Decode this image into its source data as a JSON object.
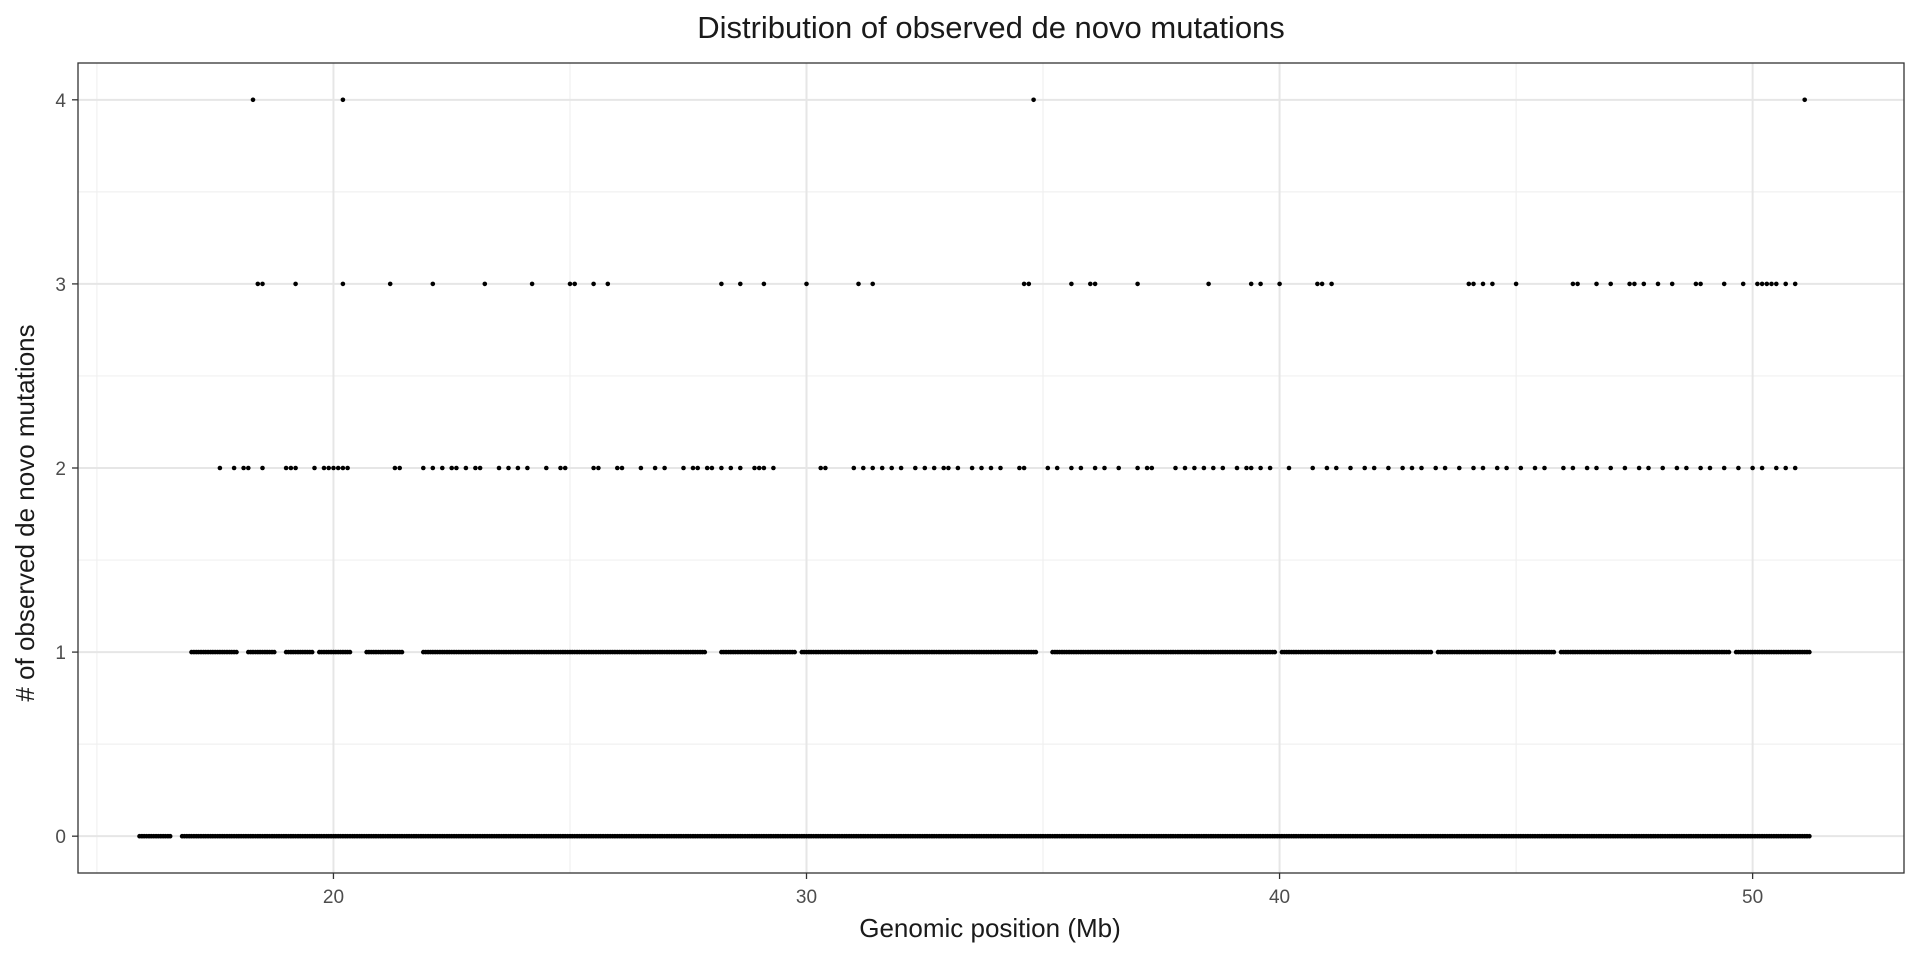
{
  "chart_data": {
    "type": "scatter",
    "title": "Distribution of observed de novo mutations",
    "xlabel": "Genomic position (Mb)",
    "ylabel": "# of observed de novo mutations",
    "xlim": [
      14.6,
      53.2
    ],
    "ylim": [
      -0.2,
      4.2
    ],
    "x_ticks": [
      20,
      30,
      40,
      50
    ],
    "y_ticks": [
      0,
      1,
      2,
      3,
      4
    ],
    "grid": true,
    "legend": "none",
    "point_color": "#000000",
    "series": [
      {
        "y": 4,
        "x": [
          18.3,
          20.2,
          34.8,
          51.1
        ]
      },
      {
        "y": 3,
        "x": [
          18.4,
          18.5,
          19.2,
          20.2,
          21.2,
          22.1,
          23.2,
          24.2,
          25.0,
          25.1,
          25.5,
          25.8,
          28.2,
          28.6,
          29.1,
          30.0,
          31.1,
          31.4,
          34.6,
          34.7,
          35.6,
          36.0,
          36.1,
          37.0,
          38.5,
          39.4,
          39.6,
          40.0,
          40.8,
          40.9,
          41.1,
          44.0,
          44.1,
          44.3,
          44.5,
          45.0,
          46.2,
          46.3,
          46.7,
          47.0,
          47.4,
          47.5,
          47.7,
          48.0,
          48.3,
          48.8,
          48.9,
          49.4,
          49.8,
          50.1,
          50.2,
          50.3,
          50.4,
          50.5,
          50.7,
          50.9
        ]
      },
      {
        "y": 2,
        "x": [
          17.6,
          17.9,
          18.1,
          18.2,
          18.5,
          19.0,
          19.1,
          19.2,
          19.6,
          19.8,
          19.9,
          20.0,
          20.1,
          20.2,
          20.3,
          21.3,
          21.4,
          21.9,
          22.1,
          22.3,
          22.5,
          22.6,
          22.8,
          23.0,
          23.1,
          23.5,
          23.7,
          23.9,
          24.1,
          24.5,
          24.8,
          24.9,
          25.5,
          25.6,
          26.0,
          26.1,
          26.5,
          26.8,
          27.0,
          27.4,
          27.6,
          27.7,
          27.9,
          28.0,
          28.2,
          28.4,
          28.6,
          28.9,
          29.0,
          29.1,
          29.3,
          30.3,
          30.4,
          31.0,
          31.2,
          31.4,
          31.6,
          31.8,
          32.0,
          32.3,
          32.5,
          32.7,
          32.9,
          33.0,
          33.2,
          33.5,
          33.7,
          33.9,
          34.1,
          34.5,
          34.6,
          35.1,
          35.3,
          35.6,
          35.8,
          36.1,
          36.3,
          36.6,
          37.0,
          37.2,
          37.3,
          37.8,
          38.0,
          38.2,
          38.4,
          38.6,
          38.8,
          39.1,
          39.3,
          39.4,
          39.6,
          39.8,
          40.2,
          40.7,
          41.0,
          41.2,
          41.5,
          41.8,
          42.0,
          42.3,
          42.6,
          42.8,
          43.0,
          43.3,
          43.5,
          43.8,
          44.1,
          44.3,
          44.6,
          44.8,
          45.1,
          45.4,
          45.6,
          46.0,
          46.2,
          46.5,
          46.7,
          47.0,
          47.3,
          47.6,
          47.8,
          48.1,
          48.4,
          48.6,
          48.9,
          49.1,
          49.4,
          49.7,
          50.0,
          50.2,
          50.5,
          50.7,
          50.9
        ]
      }
    ],
    "dense_rows": [
      {
        "y": 1,
        "x_start": 17.0,
        "x_end": 51.2,
        "gaps": [
          [
            18.0,
            18.2
          ],
          [
            18.8,
            19.0
          ],
          [
            19.6,
            19.7
          ],
          [
            20.4,
            20.7
          ],
          [
            21.5,
            21.9
          ],
          [
            27.9,
            28.2
          ],
          [
            29.8,
            29.9
          ],
          [
            34.9,
            35.2
          ],
          [
            39.9,
            40.0
          ],
          [
            43.2,
            43.3
          ],
          [
            45.8,
            45.9
          ],
          [
            49.5,
            49.6
          ]
        ]
      },
      {
        "y": 0,
        "x_start": 15.9,
        "x_end": 51.2,
        "gaps": [
          [
            16.6,
            16.8
          ]
        ]
      }
    ]
  }
}
